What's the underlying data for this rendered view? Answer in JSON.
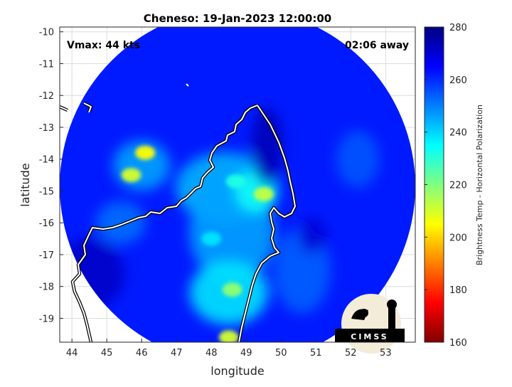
{
  "chart_data": {
    "type": "heatmap",
    "title": "Cheneso: 19-Jan-2023 12:00:00",
    "xlabel": "longitude",
    "ylabel": "latitude",
    "xlim": [
      43.65,
      53.85
    ],
    "ylim": [
      -19.75,
      -9.85
    ],
    "x_ticks": [
      44,
      45,
      46,
      47,
      48,
      49,
      50,
      51,
      52,
      53
    ],
    "y_ticks": [
      -10,
      -11,
      -12,
      -13,
      -14,
      -15,
      -16,
      -17,
      -18,
      -19
    ],
    "grid": true,
    "annotations": {
      "left": "Vmax: 44 kts",
      "right": "02:06 away"
    },
    "colorbar": {
      "label": "Brightness Temp - Horizontal Polarization",
      "min": 160,
      "max": 280,
      "ticks": [
        280,
        260,
        240,
        220,
        200,
        180,
        160
      ],
      "colormap": "jet"
    },
    "swath_center": [
      48.75,
      -14.85
    ],
    "swath_radius_deg": 5.1,
    "features": [
      {
        "lon": 48.7,
        "lat": -14.7,
        "temp": 232
      },
      {
        "lon": 49.5,
        "lat": -15.1,
        "temp": 212
      },
      {
        "lon": 48.6,
        "lat": -18.1,
        "temp": 218
      },
      {
        "lon": 46.1,
        "lat": -13.8,
        "temp": 205
      },
      {
        "lon": 45.7,
        "lat": -14.5,
        "temp": 210
      },
      {
        "lon": 48.5,
        "lat": -19.6,
        "temp": 210
      },
      {
        "lon": 48.0,
        "lat": -16.5,
        "temp": 238
      }
    ],
    "logo": "CIMSS"
  }
}
